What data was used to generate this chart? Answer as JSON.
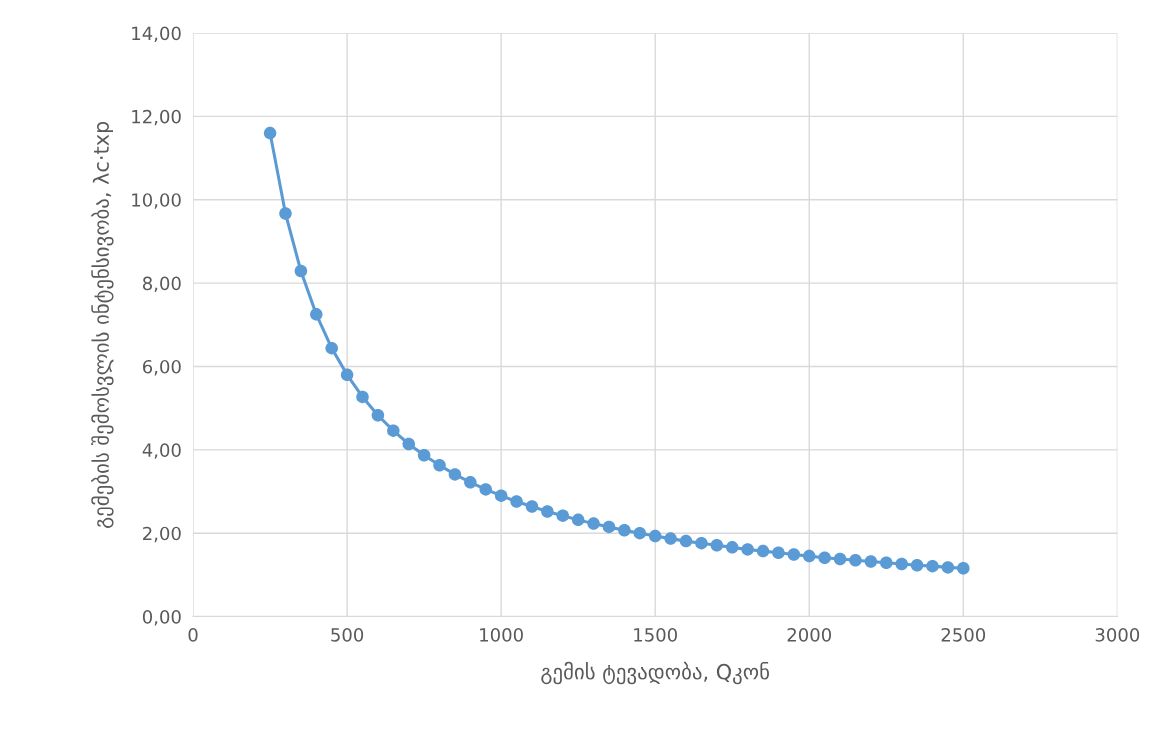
{
  "chart_data": {
    "type": "line",
    "xlabel": "გემის ტევადობა, Qკონ",
    "ylabel": "გემების შემოსვლის ინტენსივობა, λc·txp",
    "x": [
      250,
      300,
      350,
      400,
      450,
      500,
      550,
      600,
      650,
      700,
      750,
      800,
      850,
      900,
      950,
      1000,
      1050,
      1100,
      1150,
      1200,
      1250,
      1300,
      1350,
      1400,
      1450,
      1500,
      1550,
      1600,
      1650,
      1700,
      1750,
      1800,
      1850,
      1900,
      1950,
      2000,
      2050,
      2100,
      2150,
      2200,
      2250,
      2300,
      2350,
      2400,
      2450,
      2500
    ],
    "series": [
      {
        "color": "#5b9bd5",
        "values": [
          11.6,
          9.67,
          8.29,
          7.25,
          6.44,
          5.8,
          5.27,
          4.83,
          4.46,
          4.14,
          3.87,
          3.63,
          3.41,
          3.22,
          3.05,
          2.9,
          2.76,
          2.64,
          2.52,
          2.42,
          2.32,
          2.23,
          2.15,
          2.07,
          2.0,
          1.93,
          1.87,
          1.81,
          1.76,
          1.71,
          1.66,
          1.61,
          1.57,
          1.53,
          1.49,
          1.45,
          1.41,
          1.38,
          1.35,
          1.32,
          1.29,
          1.26,
          1.23,
          1.21,
          1.18,
          1.16
        ]
      }
    ],
    "xlim": [
      0,
      3000
    ],
    "xticks": [
      0,
      500,
      1000,
      1500,
      2000,
      2500,
      3000
    ],
    "ylim": [
      0,
      14
    ],
    "yticks": [
      {
        "value": 0,
        "label": "0,00"
      },
      {
        "value": 2,
        "label": "2,00"
      },
      {
        "value": 4,
        "label": "4,00"
      },
      {
        "value": 6,
        "label": "6,00"
      },
      {
        "value": 8,
        "label": "8,00"
      },
      {
        "value": 10,
        "label": "10,00"
      },
      {
        "value": 12,
        "label": "12,00"
      },
      {
        "value": 14,
        "label": "14,00"
      }
    ],
    "grid": true,
    "marker": "circle",
    "line_style": "solid"
  }
}
